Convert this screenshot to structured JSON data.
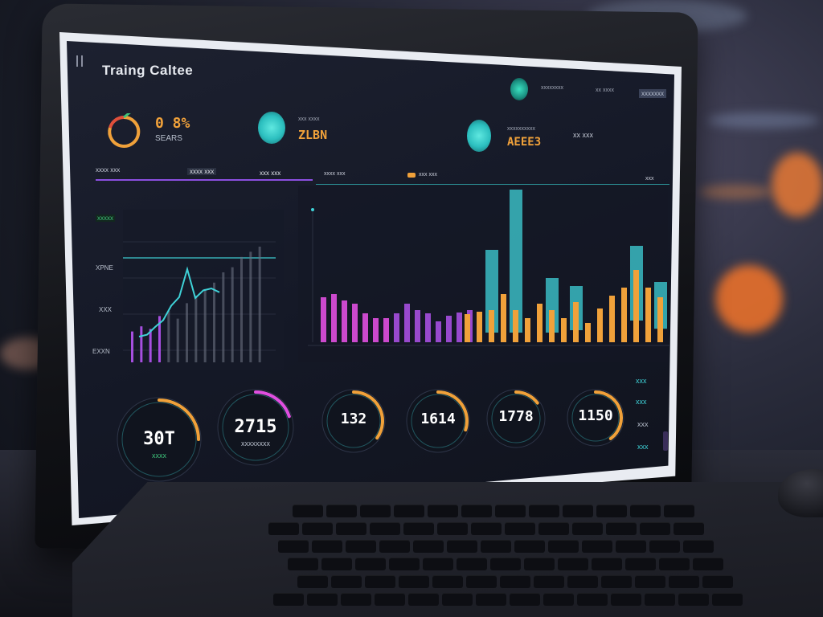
{
  "app": {
    "title": "Traing Caltee"
  },
  "header": {
    "stat1_value": "0 8%",
    "stat1_label": "SEARS",
    "stat2_label": "xxx xxxx",
    "stat2_value": "ZLBN",
    "stat3_label": "xxxxxxxxxx",
    "stat3_value": "AEEE3",
    "stat4_value": "xx xxx",
    "top_right_1": "xxxxxxxx",
    "top_right_2": "xx xxxx",
    "top_right_3": "xxxxxxx",
    "tab1": "xxxx xxx",
    "tab2": "xxxx xxx",
    "tab3": "xxx xxx",
    "tab_end": "xxx"
  },
  "left_chart": {
    "legend": "xxxxx",
    "ylabels": [
      "XPNE",
      "XXX",
      "EXXN"
    ],
    "line_points": [
      10,
      12,
      20,
      27,
      42,
      51,
      80,
      50,
      58,
      60,
      56
    ],
    "bars": [
      24,
      28,
      26,
      36,
      40,
      34,
      46,
      52,
      57,
      62,
      70,
      74,
      82,
      86,
      90
    ]
  },
  "main_chart": {
    "left_bars": [
      56,
      60,
      52,
      48,
      36,
      30,
      30,
      36,
      48,
      40,
      36,
      26,
      33,
      37,
      40
    ],
    "mixed": [
      {
        "orange": 35,
        "teal": 0
      },
      {
        "orange": 38,
        "teal": 0
      },
      {
        "orange": 40,
        "teal": 115
      },
      {
        "orange": 60,
        "teal": 0
      },
      {
        "orange": 40,
        "teal": 190
      },
      {
        "orange": 30,
        "teal": 0
      },
      {
        "orange": 48,
        "teal": 0
      },
      {
        "orange": 40,
        "teal": 80
      },
      {
        "orange": 30,
        "teal": 0
      },
      {
        "orange": 50,
        "teal": 70
      },
      {
        "orange": 24,
        "teal": 0
      },
      {
        "orange": 42,
        "teal": 0
      },
      {
        "orange": 58,
        "teal": 0
      },
      {
        "orange": 68,
        "teal": 0
      },
      {
        "orange": 90,
        "teal": 120
      },
      {
        "orange": 68,
        "teal": 0
      },
      {
        "orange": 56,
        "teal": 75
      }
    ]
  },
  "gauges": [
    {
      "value": "30T",
      "label": "xxxx",
      "progress": 0.25
    },
    {
      "value": "2715",
      "label": "xxxxxxxx",
      "progress": 0.2
    },
    {
      "value": "132",
      "label": "",
      "progress": 0.35
    },
    {
      "value": "1614",
      "label": "",
      "progress": 0.3
    },
    {
      "value": "1778",
      "label": "",
      "progress": 0.15
    },
    {
      "value": "1150",
      "label": "",
      "progress": 0.4
    }
  ],
  "side_stats": [
    "xxx",
    "xxx",
    "xxx",
    "xxx"
  ],
  "colors": {
    "teal": "#3fd2d8",
    "orange": "#f0a13a",
    "purple": "#a64fe0",
    "magenta": "#e04fe0",
    "green": "#3ec27a",
    "panel": "#141826"
  },
  "icons": {
    "pie": "pie-chart-icon",
    "teal_dot": "status-dot-icon",
    "menu": "menu-icon"
  }
}
